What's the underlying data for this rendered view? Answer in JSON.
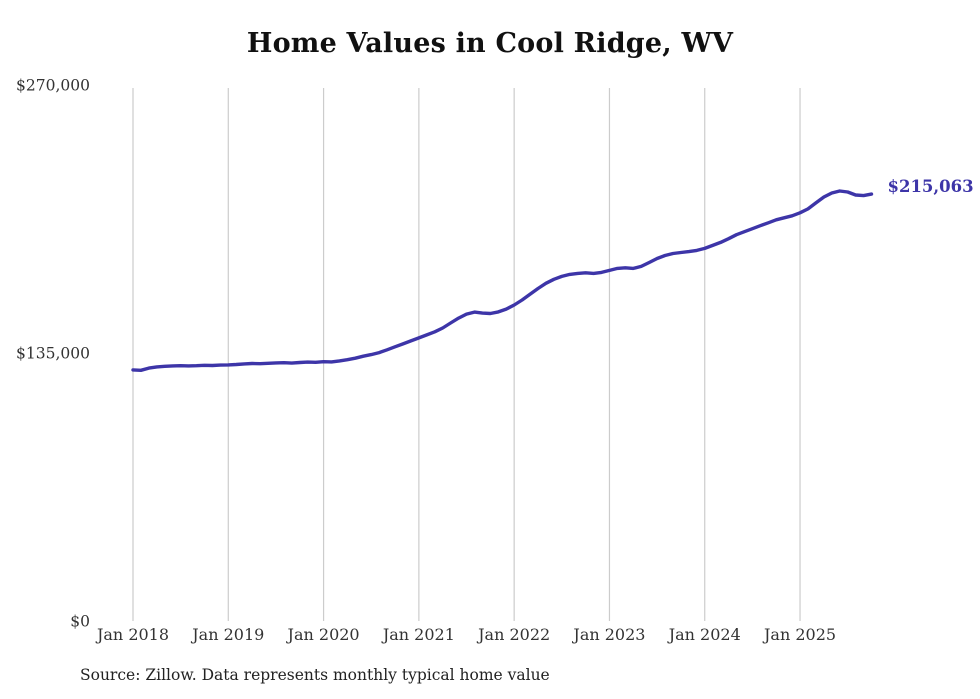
{
  "title": "Home Values in Cool Ridge, WV",
  "source_note": "Source: Zillow. Data represents monthly typical home value",
  "colors": {
    "line": "#3d35a8",
    "grid": "#cccccc",
    "axis_text": "#333333",
    "end_label": "#3d35a8"
  },
  "chart_data": {
    "type": "line",
    "title": "Home Values in Cool Ridge, WV",
    "unit": "USD",
    "start_month": "2018-01",
    "end_month": "2025-10",
    "x_tick_labels": [
      "Jan 2018",
      "Jan 2019",
      "Jan 2020",
      "Jan 2021",
      "Jan 2022",
      "Jan 2023",
      "Jan 2024",
      "Jan 2025"
    ],
    "y_ticks": [
      {
        "label": "$0",
        "value": 0
      },
      {
        "label": "$135,000",
        "value": 135000
      },
      {
        "label": "$270,000",
        "value": 270000
      }
    ],
    "ylim": [
      0,
      270000
    ],
    "grid": "vertical-only",
    "legend": "none",
    "final_value": 215063,
    "final_value_label": "$215,063",
    "series": [
      {
        "name": "Monthly typical home value",
        "values": [
          126500,
          126300,
          127400,
          128000,
          128300,
          128500,
          128600,
          128500,
          128600,
          128800,
          128700,
          128900,
          129000,
          129200,
          129500,
          129700,
          129600,
          129800,
          130000,
          130100,
          129900,
          130200,
          130400,
          130300,
          130600,
          130500,
          131000,
          131600,
          132400,
          133400,
          134200,
          135200,
          136600,
          138100,
          139600,
          141100,
          142600,
          144100,
          145700,
          147600,
          150100,
          152600,
          154600,
          155600,
          155100,
          154900,
          155700,
          157100,
          159200,
          161700,
          164600,
          167500,
          170100,
          172100,
          173600,
          174600,
          175100,
          175400,
          175100,
          175600,
          176600,
          177600,
          177900,
          177600,
          178600,
          180600,
          182600,
          184100,
          185100,
          185600,
          186100,
          186700,
          187700,
          189200,
          190700,
          192600,
          194600,
          196100,
          197600,
          199100,
          200600,
          202100,
          203100,
          204100,
          205600,
          207600,
          210600,
          213600,
          215600,
          216600,
          216100,
          214600,
          214300,
          215063
        ]
      }
    ]
  }
}
